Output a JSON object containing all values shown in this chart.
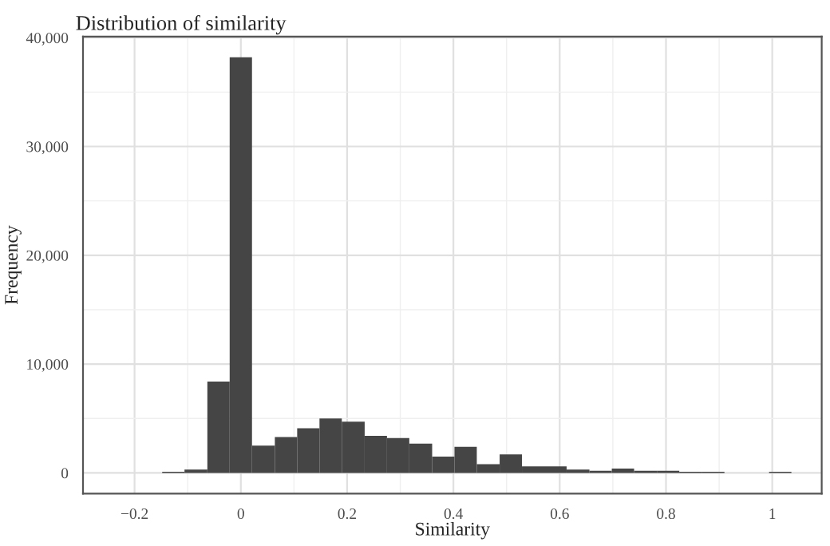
{
  "chart_data": {
    "type": "histogram",
    "title": "Distribution of similarity",
    "xlabel": "Similarity",
    "ylabel": "Frequency",
    "bins": [
      -0.148,
      -0.106,
      -0.063,
      -0.021,
      0.021,
      0.064,
      0.106,
      0.148,
      0.19,
      0.233,
      0.275,
      0.317,
      0.36,
      0.402,
      0.444,
      0.487,
      0.529,
      0.571,
      0.613,
      0.656,
      0.698,
      0.74,
      0.783,
      0.825,
      0.867,
      0.91,
      0.994,
      1.036
    ],
    "values": [
      100,
      300,
      8400,
      38200,
      2500,
      3300,
      4100,
      5000,
      4700,
      3400,
      3200,
      2700,
      1500,
      2400,
      800,
      1700,
      600,
      600,
      300,
      200,
      400,
      200,
      200,
      100,
      100,
      0,
      100
    ],
    "color": "#454545",
    "xlim": [
      -0.297,
      1.093
    ],
    "ylim": [
      -1900,
      40100
    ],
    "xticks": [
      {
        "value": -0.2,
        "label": "−0.2"
      },
      0,
      0.2,
      0.4,
      0.6,
      0.8,
      1
    ],
    "yticks": [
      0,
      {
        "value": 10000,
        "label": "10,000"
      },
      {
        "value": 20000,
        "label": "20,000"
      },
      {
        "value": 30000,
        "label": "30,000"
      },
      {
        "value": 40000,
        "label": "40,000"
      }
    ],
    "grid": true
  }
}
